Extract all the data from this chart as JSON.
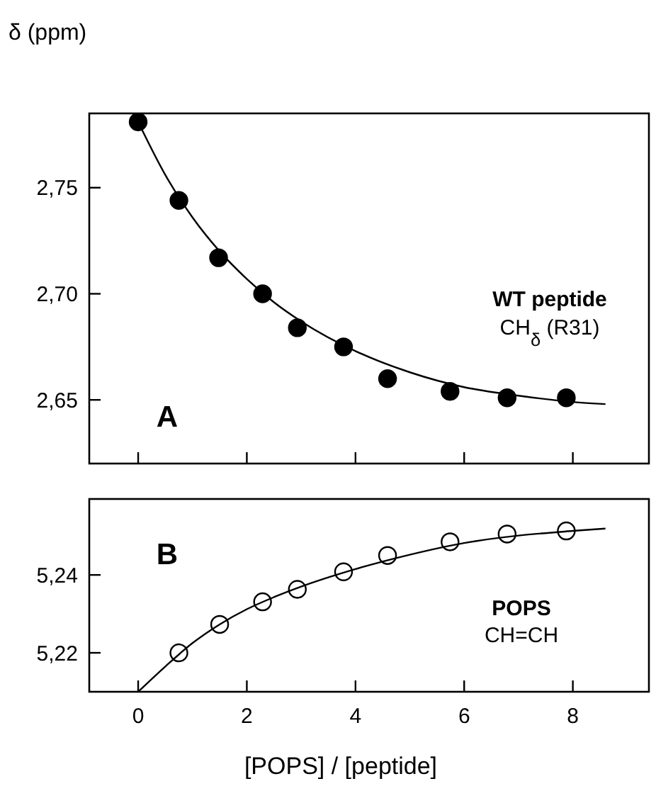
{
  "chart_data": [
    {
      "type": "scatter",
      "ylabel": "δ (ppm)",
      "xlim": [
        -0.9,
        9.4
      ],
      "xticks": [
        0,
        2,
        4,
        6,
        8
      ],
      "ylim": [
        2.62,
        2.785
      ],
      "yticks": [
        {
          "value": 2.65,
          "label": "2,65"
        },
        {
          "value": 2.7,
          "label": "2,70"
        },
        {
          "value": 2.75,
          "label": "2,75"
        }
      ],
      "tick_labels": "y",
      "grid": false,
      "annotations": [
        "A",
        "WT peptide",
        "CH$_{δ}$ (R31)"
      ],
      "series": [
        {
          "marker": "circle",
          "color": "#000000",
          "x": [
            0,
            0.75,
            1.48,
            2.29,
            2.93,
            3.78,
            4.59,
            5.74,
            6.79,
            7.88
          ],
          "values": [
            2.781,
            2.744,
            2.717,
            2.7,
            2.684,
            2.675,
            2.66,
            2.654,
            2.651,
            2.651
          ]
        },
        {
          "type": "line",
          "marker": "none",
          "color": "#000000",
          "x": [
            0,
            0.5,
            1,
            1.5,
            2,
            2.5,
            3,
            4,
            5,
            6,
            7,
            8,
            8.6
          ],
          "values": [
            2.781,
            2.756,
            2.736,
            2.72,
            2.707,
            2.696,
            2.687,
            2.673,
            2.663,
            2.656,
            2.652,
            2.649,
            2.648
          ]
        }
      ]
    },
    {
      "type": "scatter",
      "xlabel": "[POPS] / [peptide]",
      "xlim": [
        -0.9,
        9.4
      ],
      "xticks": [
        0,
        2,
        4,
        6,
        8
      ],
      "ylim": [
        5.21,
        5.2595
      ],
      "yticks": [
        {
          "value": 5.22,
          "label": "5,22"
        },
        {
          "value": 5.24,
          "label": "5,24"
        }
      ],
      "grid": false,
      "annotations": [
        "B",
        "POPS",
        "CH=CH"
      ],
      "series": [
        {
          "marker": "circle",
          "color": "#ffffff",
          "x": [
            0.75,
            1.5,
            2.29,
            2.93,
            3.78,
            4.59,
            5.74,
            6.79,
            7.88
          ],
          "values": [
            5.22,
            5.2273,
            5.2331,
            5.2363,
            5.2408,
            5.245,
            5.2485,
            5.2505,
            5.2513
          ]
        },
        {
          "type": "line",
          "marker": "none",
          "color": "#000000",
          "x": [
            0,
            0.5,
            1,
            1.5,
            2,
            2.5,
            3,
            4,
            5,
            6,
            7,
            8,
            8.6
          ],
          "values": [
            5.21,
            5.2165,
            5.2225,
            5.2273,
            5.2312,
            5.2343,
            5.237,
            5.2415,
            5.2452,
            5.2482,
            5.2501,
            5.2513,
            5.2519
          ]
        }
      ]
    }
  ]
}
